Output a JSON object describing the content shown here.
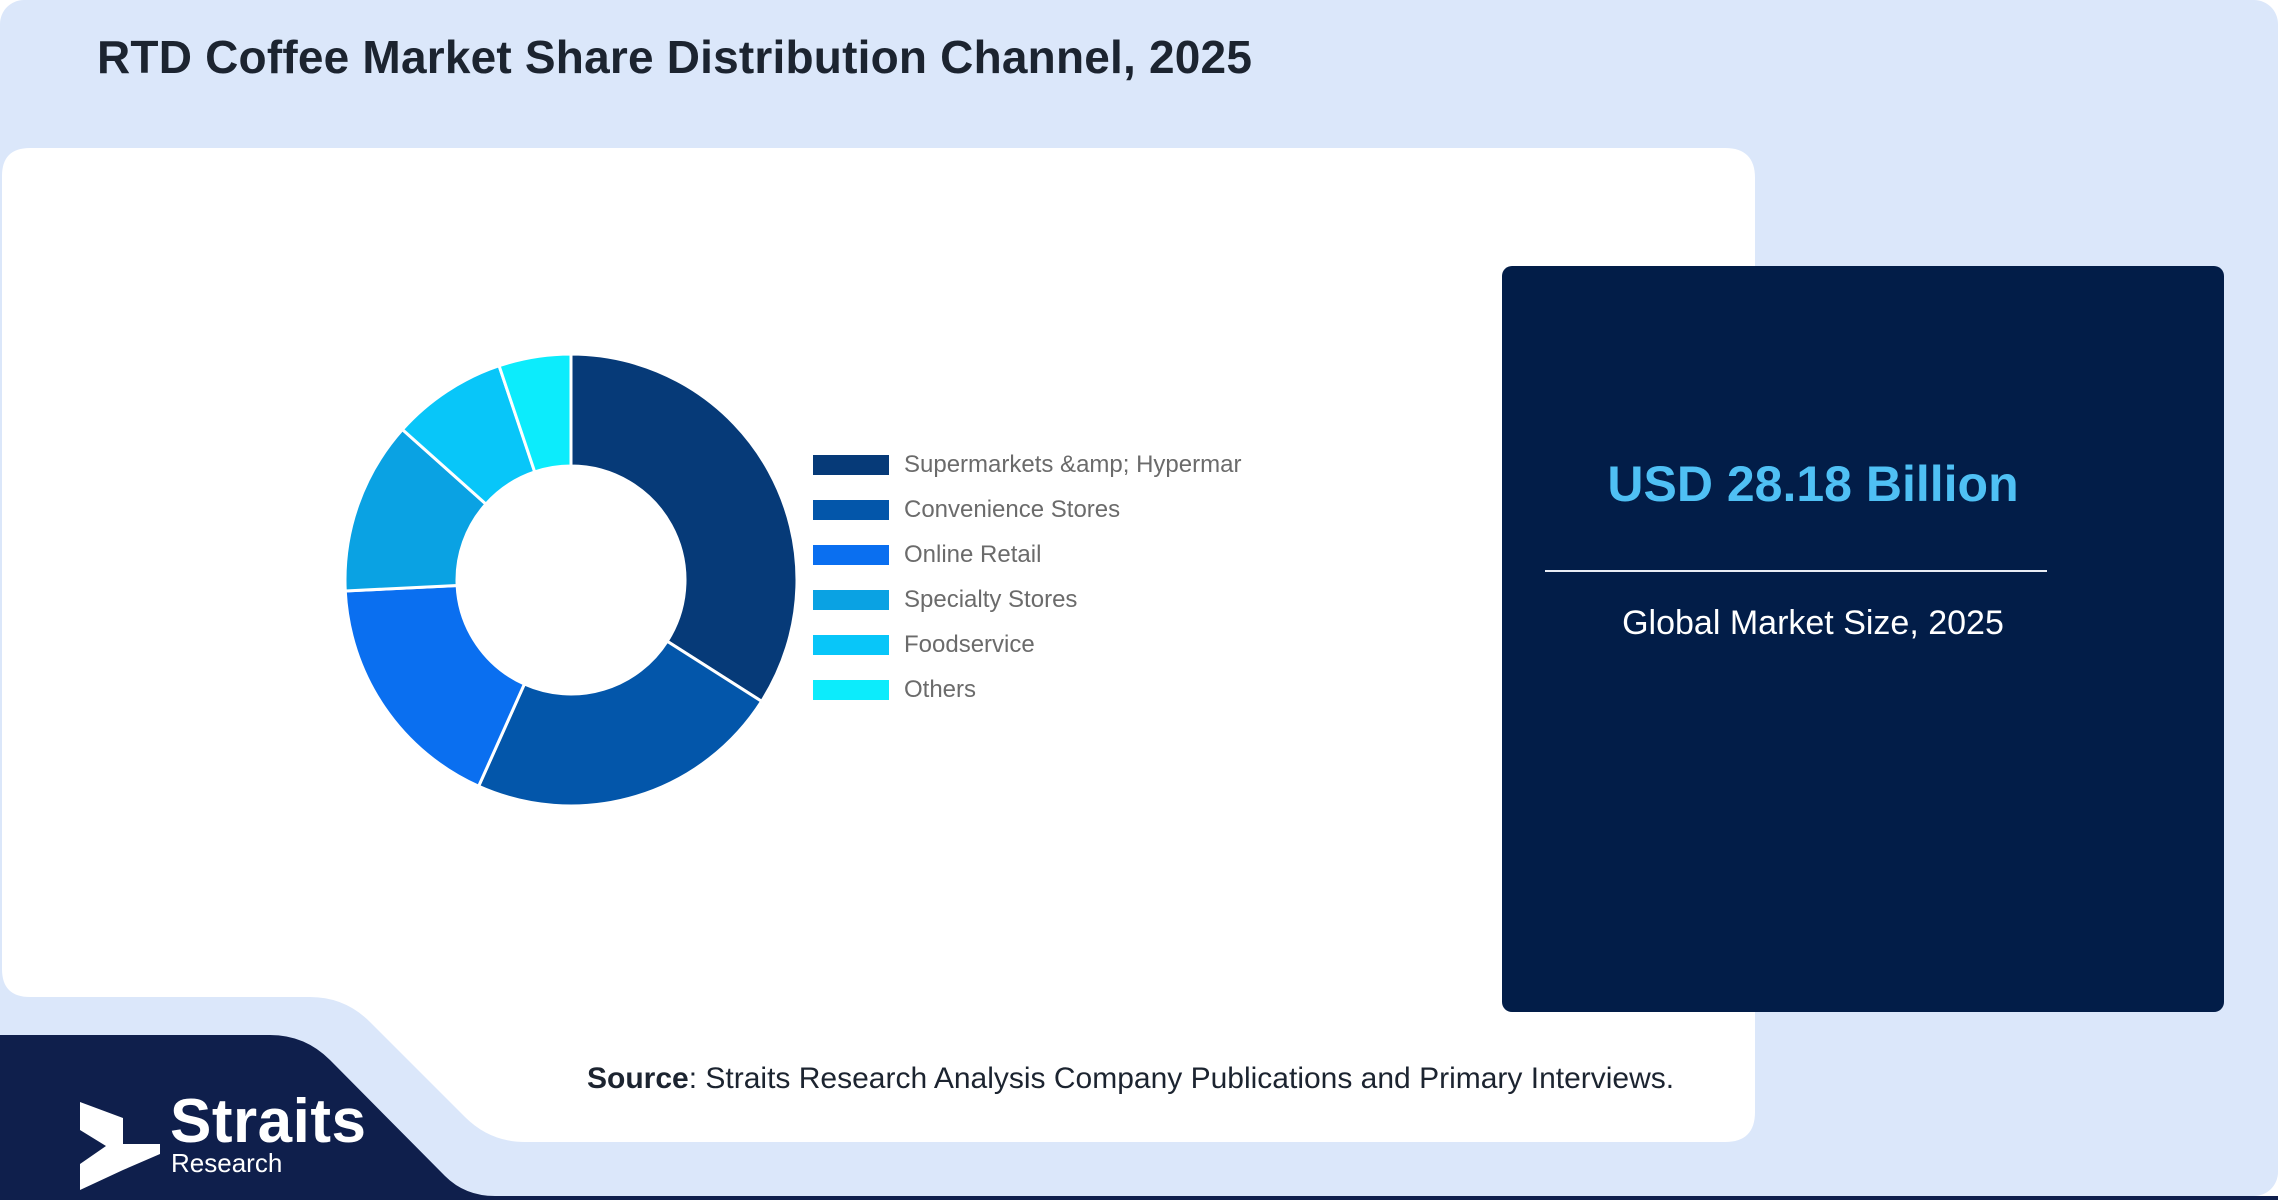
{
  "title": "RTD Coffee Market Share Distribution Channel, 2025",
  "stat": {
    "value": "USD 28.18 Billion",
    "label": "Global Market Size, 2025"
  },
  "source": {
    "label": "Source",
    "text": ": Straits Research Analysis Company Publications and Primary Interviews."
  },
  "logo": {
    "name": "Straits",
    "sub": "Research"
  },
  "colors": {
    "page_bg": "#dbe7fa",
    "card_bg": "#ffffff",
    "stat_card_bg": "#021d48",
    "stat_value": "#4fc0f4",
    "footer_navy": "#0f1f4c"
  },
  "chart_data": {
    "type": "donut",
    "categories": [
      "Supermarkets &amp; Hypermar",
      "Convenience Stores",
      "Online Retail",
      "Specialty Stores",
      "Foodservice",
      "Others"
    ],
    "values": [
      33,
      22,
      17,
      12,
      8,
      5
    ],
    "colors": [
      "#063a78",
      "#0356aa",
      "#0a6ff0",
      "#0aa2e3",
      "#08c6f9",
      "#0cecfc"
    ],
    "legend_position": "right"
  }
}
